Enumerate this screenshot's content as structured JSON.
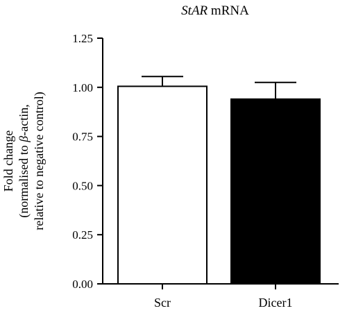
{
  "chart_data": {
    "type": "bar",
    "title_italic": "StAR",
    "title_rest": " mRNA",
    "ylabel_lines": [
      "Fold change",
      [
        "(normalised to ",
        "β",
        "-actin,"
      ],
      "relative to negative control)"
    ],
    "categories": [
      "Scr",
      "Dicer1"
    ],
    "values": [
      1.005,
      0.94
    ],
    "errors": [
      0.05,
      0.085
    ],
    "bar_fills": [
      "#ffffff",
      "#000000"
    ],
    "ylim": [
      0,
      1.25
    ],
    "yticks": [
      0,
      0.25,
      0.5,
      0.75,
      1.0,
      1.25
    ],
    "ytick_labels": [
      "0.00",
      "0.25",
      "0.50",
      "0.75",
      "1.00",
      "1.25"
    ],
    "grid": false,
    "legend": "none"
  }
}
